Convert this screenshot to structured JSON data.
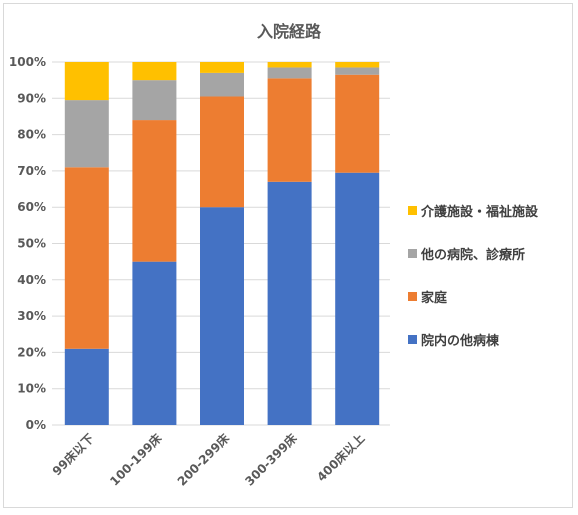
{
  "chart_data": {
    "type": "bar",
    "stacked": true,
    "title": "入院経路",
    "categories": [
      "99床以下",
      "100-199床",
      "200-299床",
      "300-399床",
      "400床以上"
    ],
    "series": [
      {
        "name": "院内の他病棟",
        "color": "#4472C4",
        "values": [
          21,
          45,
          60,
          67,
          69.5
        ]
      },
      {
        "name": "家庭",
        "color": "#ED7D31",
        "values": [
          50,
          39,
          30.5,
          28.5,
          27
        ]
      },
      {
        "name": "他の病院、診療所",
        "color": "#A5A5A5",
        "values": [
          18.5,
          11,
          6.5,
          3,
          2
        ]
      },
      {
        "name": "介護施設・福祉施設",
        "color": "#FFC000",
        "values": [
          10.5,
          5,
          3,
          1.5,
          1.5
        ]
      }
    ],
    "ylim": [
      0,
      100
    ],
    "yticks": [
      "0%",
      "10%",
      "20%",
      "30%",
      "40%",
      "50%",
      "60%",
      "70%",
      "80%",
      "90%",
      "100%"
    ],
    "grid": true,
    "legend_position": "right"
  }
}
